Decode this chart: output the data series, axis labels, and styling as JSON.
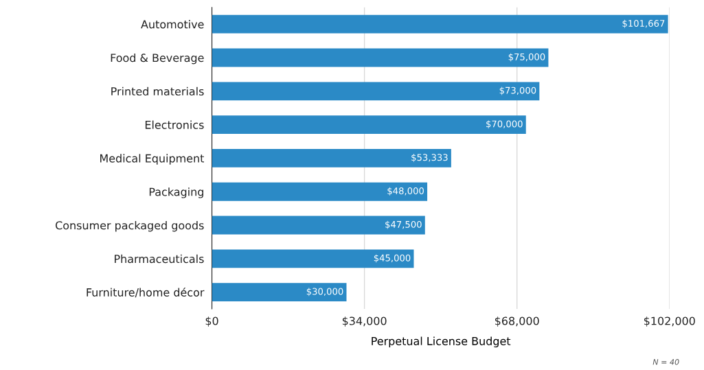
{
  "chart_data": {
    "type": "bar",
    "orientation": "horizontal",
    "xlabel": "Perpetual License Budget",
    "categories": [
      "Automotive",
      "Food & Beverage",
      "Printed materials",
      "Electronics",
      "Medical Equipment",
      "Packaging",
      "Consumer packaged goods",
      "Pharmaceuticals",
      "Furniture/home décor"
    ],
    "values": [
      101667,
      75000,
      73000,
      70000,
      53333,
      48000,
      47500,
      45000,
      30000
    ],
    "value_labels": [
      "$101,667",
      "$75,000",
      "$73,000",
      "$70,000",
      "$53,333",
      "$48,000",
      "$47,500",
      "$45,000",
      "$30,000"
    ],
    "color": "#2b8ac6",
    "xlim": [
      0,
      102000
    ],
    "xticks": [
      {
        "value": 0,
        "label": "$0"
      },
      {
        "value": 34000,
        "label": "$34,000"
      },
      {
        "value": 68000,
        "label": "$68,000"
      },
      {
        "value": 102000,
        "label": "$102,000"
      }
    ],
    "grid": "x",
    "legend": false,
    "annotations": [
      "N = 40"
    ]
  }
}
